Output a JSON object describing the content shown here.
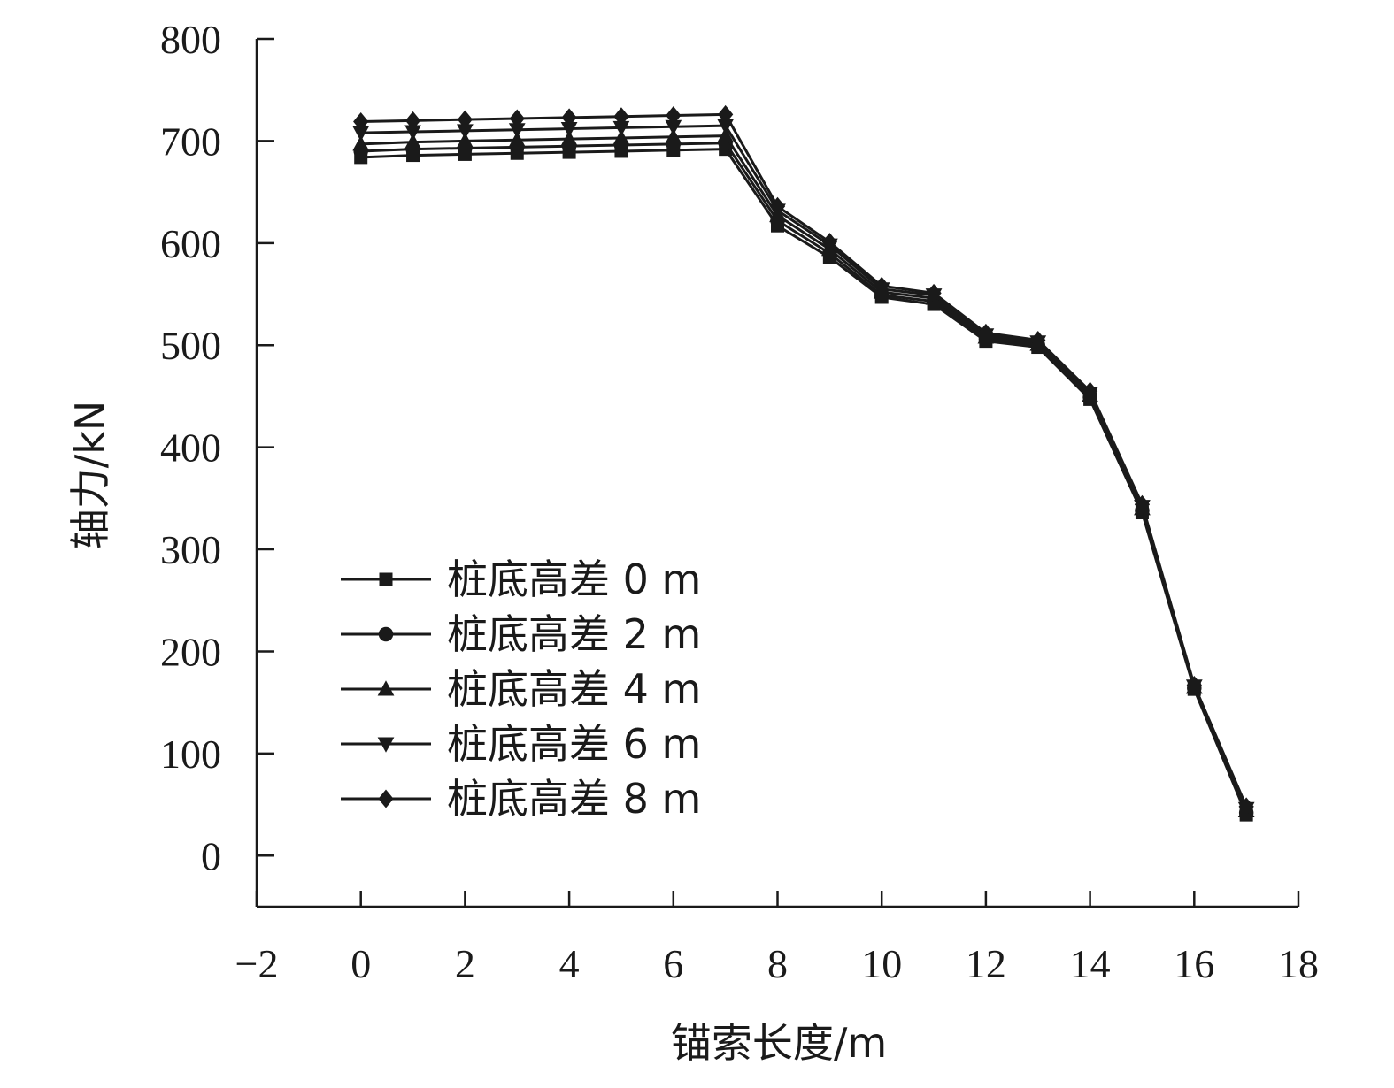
{
  "chart_data": {
    "type": "line",
    "title": "",
    "xlabel": "锚索长度/m",
    "ylabel": "轴力/kN",
    "xlim": [
      -2,
      18
    ],
    "ylim": [
      -50,
      800
    ],
    "xticks": [
      -2,
      0,
      2,
      4,
      6,
      8,
      10,
      12,
      14,
      16,
      18
    ],
    "xtick_labels": [
      "−2",
      "0",
      "2",
      "4",
      "6",
      "8",
      "10",
      "12",
      "14",
      "16",
      "18"
    ],
    "yticks": [
      0,
      100,
      200,
      300,
      400,
      500,
      600,
      700,
      800
    ],
    "ytick_labels": [
      "0",
      "100",
      "200",
      "300",
      "400",
      "500",
      "600",
      "700",
      "800"
    ],
    "grid": false,
    "legend_position": "lower-left",
    "line_color": "#1a1a1a",
    "x": [
      0,
      1,
      2,
      3,
      4,
      5,
      6,
      7,
      8,
      9,
      10,
      11,
      12,
      13,
      14,
      15,
      16,
      17
    ],
    "series": [
      {
        "name": "桩底高差 0 m",
        "marker": "square",
        "values": [
          684,
          686,
          687,
          688,
          689,
          690,
          691,
          692,
          617,
          586,
          547,
          540,
          504,
          498,
          447,
          336,
          163,
          40
        ]
      },
      {
        "name": "桩底高差 2 m",
        "marker": "circle",
        "values": [
          690,
          692,
          693,
          694,
          695,
          696,
          697,
          698,
          622,
          590,
          549,
          543,
          506,
          500,
          449,
          338,
          164,
          42
        ]
      },
      {
        "name": "桩底高差 4 m",
        "marker": "triangle-up",
        "values": [
          697,
          699,
          700,
          701,
          702,
          703,
          704,
          705,
          627,
          594,
          552,
          546,
          508,
          501,
          451,
          340,
          165,
          44
        ]
      },
      {
        "name": "桩底高差 6 m",
        "marker": "triangle-down",
        "values": [
          708,
          709,
          710,
          711,
          712,
          713,
          714,
          715,
          632,
          598,
          555,
          549,
          510,
          503,
          453,
          342,
          166,
          46
        ]
      },
      {
        "name": "桩底高差 8 m",
        "marker": "diamond",
        "values": [
          719,
          720,
          721,
          722,
          723,
          724,
          725,
          726,
          636,
          601,
          558,
          551,
          512,
          505,
          455,
          344,
          167,
          48
        ]
      }
    ]
  }
}
